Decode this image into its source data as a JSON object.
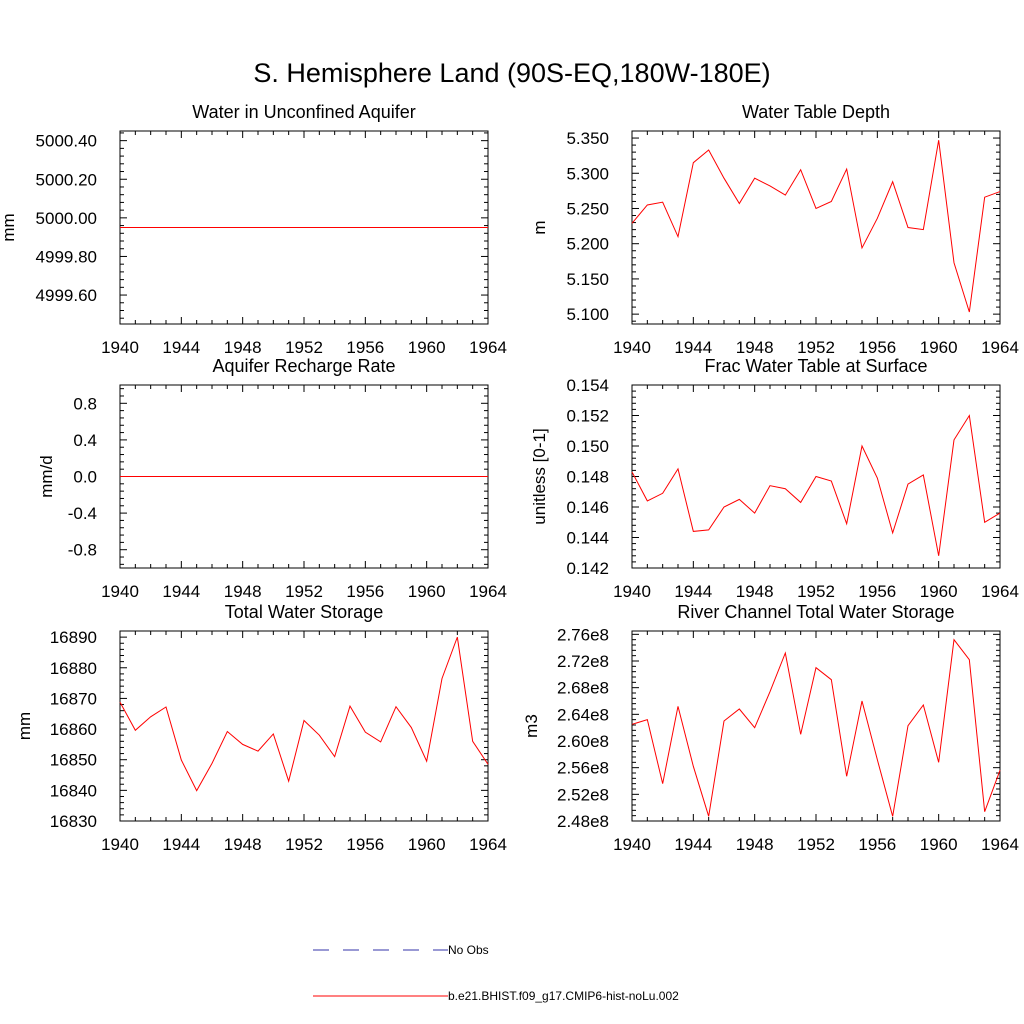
{
  "figure_title": "S. Hemisphere Land (90S-EQ,180W-180E)",
  "colors": {
    "model": "#ff0000",
    "obs": "#3333aa"
  },
  "legend": [
    {
      "label": "No Obs",
      "style": "dashed",
      "color": "#3333aa"
    },
    {
      "label": "b.e21.BHIST.f09_g17.CMIP6-hist-noLu.002",
      "style": "solid",
      "color": "#ff0000"
    }
  ],
  "chart_data": [
    {
      "type": "line",
      "title": "Water in Unconfined Aquifer",
      "xlabel": "",
      "ylabel": "mm",
      "xlim": [
        1940,
        1964
      ],
      "ylim": [
        4999.45,
        5000.45
      ],
      "x_ticks": [
        1940,
        1944,
        1948,
        1952,
        1956,
        1960,
        1964
      ],
      "x_tick_labels": [
        "1940",
        "1944",
        "1948",
        "1952",
        "1956",
        "1960",
        "1964"
      ],
      "y_ticks": [
        4999.6,
        4999.8,
        5000.0,
        5000.2,
        5000.4
      ],
      "y_tick_labels": [
        "4999.60",
        "4999.80",
        "5000.00",
        "5000.20",
        "5000.40"
      ],
      "grid": false,
      "series": [
        {
          "x": [
            1940,
            1964
          ],
          "values": [
            4999.95,
            4999.95
          ]
        }
      ]
    },
    {
      "type": "line",
      "title": "Water Table Depth",
      "xlabel": "",
      "ylabel": "m",
      "xlim": [
        1940,
        1964
      ],
      "ylim": [
        5.086,
        5.36
      ],
      "x_ticks": [
        1940,
        1944,
        1948,
        1952,
        1956,
        1960,
        1964
      ],
      "x_tick_labels": [
        "1940",
        "1944",
        "1948",
        "1952",
        "1956",
        "1960",
        "1964"
      ],
      "y_ticks": [
        5.1,
        5.15,
        5.2,
        5.25,
        5.3,
        5.35
      ],
      "y_tick_labels": [
        "5.100",
        "5.150",
        "5.200",
        "5.250",
        "5.300",
        "5.350"
      ],
      "grid": false,
      "series": [
        {
          "x": [
            1940,
            1941,
            1942,
            1943,
            1944,
            1945,
            1946,
            1947,
            1948,
            1949,
            1950,
            1951,
            1952,
            1953,
            1954,
            1955,
            1956,
            1957,
            1958,
            1959,
            1960,
            1961,
            1962,
            1963,
            1964
          ],
          "values": [
            5.229,
            5.255,
            5.259,
            5.21,
            5.315,
            5.333,
            5.293,
            5.257,
            5.293,
            5.282,
            5.269,
            5.305,
            5.25,
            5.26,
            5.306,
            5.194,
            5.236,
            5.288,
            5.223,
            5.22,
            5.347,
            5.173,
            5.103,
            5.266,
            5.274
          ]
        }
      ]
    },
    {
      "type": "line",
      "title": "Aquifer Recharge Rate",
      "xlabel": "",
      "ylabel": "mm/d",
      "xlim": [
        1940,
        1964
      ],
      "ylim": [
        -1.0,
        1.0
      ],
      "x_ticks": [
        1940,
        1944,
        1948,
        1952,
        1956,
        1960,
        1964
      ],
      "x_tick_labels": [
        "1940",
        "1944",
        "1948",
        "1952",
        "1956",
        "1960",
        "1964"
      ],
      "y_ticks": [
        -0.8,
        -0.4,
        0.0,
        0.4,
        0.8
      ],
      "y_tick_labels": [
        "-0.8",
        "-0.4",
        "0.0",
        "0.4",
        "0.8"
      ],
      "grid": false,
      "series": [
        {
          "x": [
            1940,
            1964
          ],
          "values": [
            0.0,
            0.0
          ]
        }
      ]
    },
    {
      "type": "line",
      "title": "Frac Water Table at Surface",
      "xlabel": "",
      "ylabel": "unitless [0-1]",
      "xlim": [
        1940,
        1964
      ],
      "ylim": [
        0.142,
        0.154
      ],
      "x_ticks": [
        1940,
        1944,
        1948,
        1952,
        1956,
        1960,
        1964
      ],
      "x_tick_labels": [
        "1940",
        "1944",
        "1948",
        "1952",
        "1956",
        "1960",
        "1964"
      ],
      "y_ticks": [
        0.142,
        0.144,
        0.146,
        0.148,
        0.15,
        0.152,
        0.154
      ],
      "y_tick_labels": [
        "0.142",
        "0.144",
        "0.146",
        "0.148",
        "0.150",
        "0.152",
        "0.154"
      ],
      "grid": false,
      "series": [
        {
          "x": [
            1940,
            1941,
            1942,
            1943,
            1944,
            1945,
            1946,
            1947,
            1948,
            1949,
            1950,
            1951,
            1952,
            1953,
            1954,
            1955,
            1956,
            1957,
            1958,
            1959,
            1960,
            1961,
            1962,
            1963,
            1964
          ],
          "values": [
            0.1483,
            0.1464,
            0.1469,
            0.1485,
            0.1444,
            0.1445,
            0.146,
            0.1465,
            0.1456,
            0.1474,
            0.1472,
            0.1463,
            0.148,
            0.1477,
            0.1449,
            0.15,
            0.1479,
            0.1443,
            0.1475,
            0.1481,
            0.1428,
            0.1504,
            0.152,
            0.145,
            0.1456
          ]
        }
      ]
    },
    {
      "type": "line",
      "title": "Total Water Storage",
      "xlabel": "",
      "ylabel": "mm",
      "xlim": [
        1940,
        1964
      ],
      "ylim": [
        16830,
        16892
      ],
      "x_ticks": [
        1940,
        1944,
        1948,
        1952,
        1956,
        1960,
        1964
      ],
      "x_tick_labels": [
        "1940",
        "1944",
        "1948",
        "1952",
        "1956",
        "1960",
        "1964"
      ],
      "y_ticks": [
        16830,
        16840,
        16850,
        16860,
        16870,
        16880,
        16890
      ],
      "y_tick_labels": [
        "16830",
        "16840",
        "16850",
        "16860",
        "16870",
        "16880",
        "16890"
      ],
      "grid": false,
      "series": [
        {
          "x": [
            1940,
            1941,
            1942,
            1943,
            1944,
            1945,
            1946,
            1947,
            1948,
            1949,
            1950,
            1951,
            1952,
            1953,
            1954,
            1955,
            1956,
            1957,
            1958,
            1959,
            1960,
            1961,
            1962,
            1963,
            1964
          ],
          "values": [
            16868.8,
            16859.6,
            16864,
            16867.2,
            16849.9,
            16839.9,
            16848.8,
            16859.2,
            16855,
            16852.8,
            16858.4,
            16843,
            16862.8,
            16858,
            16851,
            16867.5,
            16859,
            16855.8,
            16867.3,
            16860.5,
            16849.5,
            16876.5,
            16890,
            16856,
            16848.5
          ]
        }
      ]
    },
    {
      "type": "line",
      "title": "River Channel Total Water Storage",
      "xlabel": "",
      "ylabel": "m3",
      "xlim": [
        1940,
        1964
      ],
      "ylim": [
        248000000.0,
        276500000.0
      ],
      "x_ticks": [
        1940,
        1944,
        1948,
        1952,
        1956,
        1960,
        1964
      ],
      "x_tick_labels": [
        "1940",
        "1944",
        "1948",
        "1952",
        "1956",
        "1960",
        "1964"
      ],
      "y_ticks": [
        248000000.0,
        252000000.0,
        256000000.0,
        260000000.0,
        264000000.0,
        268000000.0,
        272000000.0,
        276000000.0
      ],
      "y_tick_labels": [
        "2.48e8",
        "2.52e8",
        "2.56e8",
        "2.60e8",
        "2.64e8",
        "2.68e8",
        "2.72e8",
        "2.76e8"
      ],
      "grid": false,
      "series": [
        {
          "x": [
            1940,
            1941,
            1942,
            1943,
            1944,
            1945,
            1946,
            1947,
            1948,
            1949,
            1950,
            1951,
            1952,
            1953,
            1954,
            1955,
            1956,
            1957,
            1958,
            1959,
            1960,
            1961,
            1962,
            1963,
            1964
          ],
          "values": [
            262500000.0,
            263200000.0,
            253600000.0,
            265200000.0,
            256200000.0,
            248700000.0,
            263000000.0,
            264800000.0,
            262000000.0,
            267400000.0,
            273200000.0,
            261000000.0,
            271000000.0,
            269200000.0,
            254700000.0,
            266000000.0,
            257200000.0,
            248700000.0,
            262300000.0,
            265400000.0,
            256800000.0,
            275200000.0,
            272200000.0,
            249400000.0,
            255600000.0
          ]
        }
      ]
    }
  ]
}
